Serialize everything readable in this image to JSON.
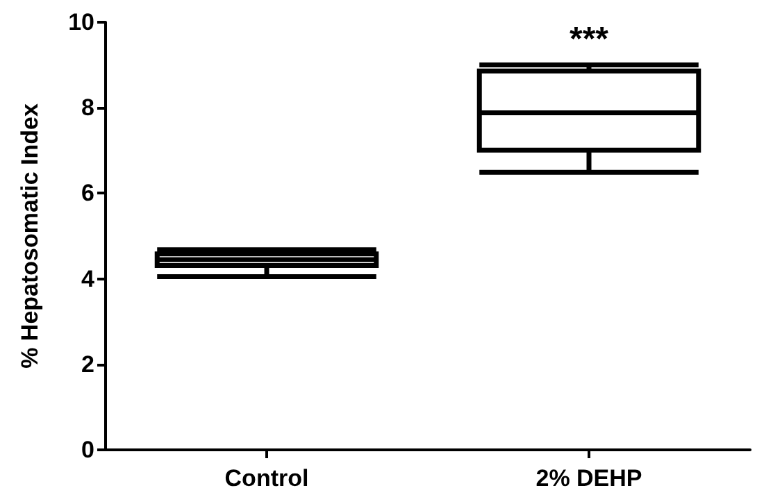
{
  "chart_data": {
    "type": "box",
    "ylabel": "% Hepatosomatic Index",
    "categories": [
      "Control",
      "2% DEHP"
    ],
    "boxes": [
      {
        "low": 4.05,
        "q1": 4.31,
        "median": 4.45,
        "q3": 4.58,
        "high": 4.68
      },
      {
        "low": 6.49,
        "q1": 7.01,
        "median": 7.88,
        "q3": 8.86,
        "high": 9.0
      }
    ],
    "color": "#000000",
    "ylim": [
      0,
      10
    ],
    "yticks": [
      0,
      2,
      4,
      6,
      8,
      10
    ],
    "grid": false,
    "annotations": [
      "***"
    ]
  }
}
